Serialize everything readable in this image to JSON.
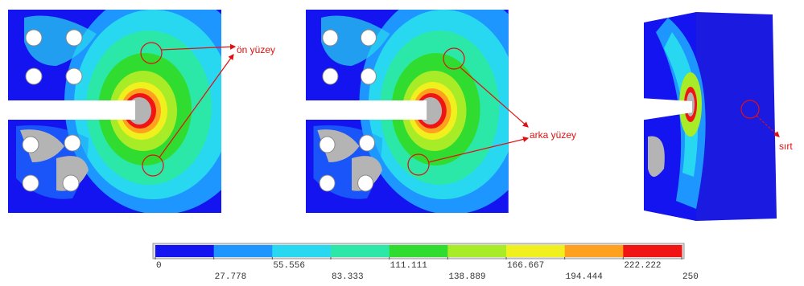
{
  "annotations": {
    "front": "ön yüzey",
    "back": "arka yüzey",
    "spine": "sırt"
  },
  "colorbar": {
    "colors": [
      "#1414f0",
      "#1e96ff",
      "#28d8f0",
      "#2ce8a8",
      "#30dc30",
      "#a8ec28",
      "#f0f01e",
      "#ffa01e",
      "#f01414"
    ],
    "ticks": [
      0,
      27.778,
      55.556,
      83.333,
      111.111,
      138.889,
      166.667,
      194.444,
      222.222,
      250
    ]
  }
}
